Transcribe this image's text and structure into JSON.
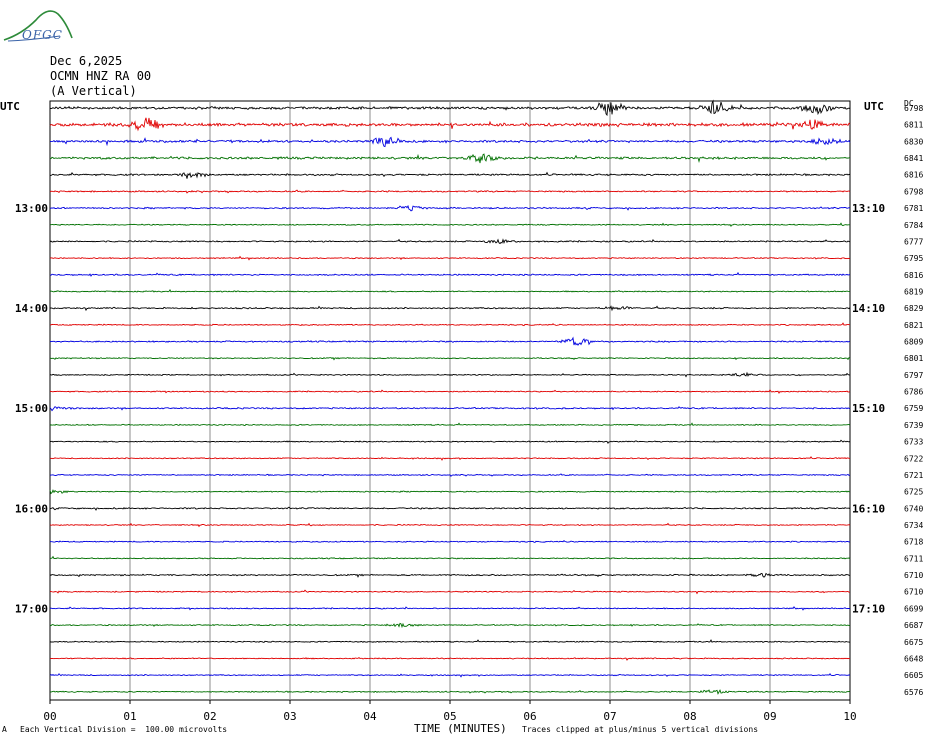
{
  "header": {
    "logo_text": "OFGC",
    "date": "Dec 6,2025",
    "station": "OCMN HNZ RA 00",
    "component": "(A Vertical)"
  },
  "labels": {
    "utc_left": "UTC",
    "utc_right": "UTC",
    "dc": "DC",
    "x_axis_title": "TIME (MINUTES)",
    "footer_left": "Each Vertical Division =  100.00 microvolts",
    "footer_right": "Traces clipped at plus/minus 5 vertical divisions",
    "footer_mark": "A"
  },
  "colors": {
    "cycle": [
      "#000000",
      "#e00000",
      "#0000e0",
      "#007000"
    ],
    "grid": "#8c8c8c"
  },
  "chart_data": {
    "type": "line",
    "x_ticks": [
      "00",
      "01",
      "02",
      "03",
      "04",
      "05",
      "06",
      "07",
      "08",
      "09",
      "10"
    ],
    "xlim": [
      0,
      10
    ],
    "left_time_labels": [
      "13:00",
      "14:00",
      "15:00",
      "16:00",
      "17:00"
    ],
    "right_time_labels": [
      "13:10",
      "14:10",
      "15:10",
      "16:10",
      "17:10"
    ],
    "left_label_rows": [
      6,
      12,
      18,
      24,
      30
    ],
    "dc_offsets": [
      "6798",
      "6811",
      "6830",
      "6841",
      "6816",
      "6798",
      "6781",
      "6784",
      "6777",
      "6795",
      "6816",
      "6819",
      "6829",
      "6821",
      "6809",
      "6801",
      "6797",
      "6786",
      "6759",
      "6739",
      "6733",
      "6722",
      "6721",
      "6725",
      "6740",
      "6734",
      "6718",
      "6711",
      "6710",
      "6710",
      "6699",
      "6687",
      "6675",
      "6648",
      "6605",
      "6576"
    ],
    "trace_noise_level": [
      0.9,
      1.1,
      0.8,
      0.8,
      0.6,
      0.5,
      0.5,
      0.4,
      0.5,
      0.4,
      0.5,
      0.4,
      0.5,
      0.4,
      0.5,
      0.4,
      0.4,
      0.4,
      0.5,
      0.4,
      0.4,
      0.4,
      0.4,
      0.4,
      0.5,
      0.4,
      0.4,
      0.4,
      0.5,
      0.4,
      0.4,
      0.4,
      0.4,
      0.4,
      0.4,
      0.4
    ],
    "events": [
      {
        "trace": 0,
        "minute": 7.0,
        "amp": 6
      },
      {
        "trace": 0,
        "minute": 8.3,
        "amp": 6
      },
      {
        "trace": 0,
        "minute": 9.6,
        "amp": 6
      },
      {
        "trace": 1,
        "minute": 1.2,
        "amp": 7
      },
      {
        "trace": 1,
        "minute": 9.5,
        "amp": 4
      },
      {
        "trace": 2,
        "minute": 4.2,
        "amp": 4
      },
      {
        "trace": 2,
        "minute": 9.7,
        "amp": 4
      },
      {
        "trace": 3,
        "minute": 5.4,
        "amp": 3
      },
      {
        "trace": 4,
        "minute": 1.8,
        "amp": 2
      },
      {
        "trace": 6,
        "minute": 4.5,
        "amp": 2
      },
      {
        "trace": 8,
        "minute": 5.6,
        "amp": 2
      },
      {
        "trace": 12,
        "minute": 7.1,
        "amp": 2
      },
      {
        "trace": 14,
        "minute": 6.6,
        "amp": 4
      },
      {
        "trace": 16,
        "minute": 8.7,
        "amp": 1.5
      },
      {
        "trace": 18,
        "minute": 0.05,
        "amp": 2
      },
      {
        "trace": 23,
        "minute": 0.05,
        "amp": 1.5
      },
      {
        "trace": 28,
        "minute": 8.9,
        "amp": 1.5
      },
      {
        "trace": 31,
        "minute": 4.4,
        "amp": 1.5
      },
      {
        "trace": 35,
        "minute": 8.3,
        "amp": 1.5
      }
    ]
  }
}
